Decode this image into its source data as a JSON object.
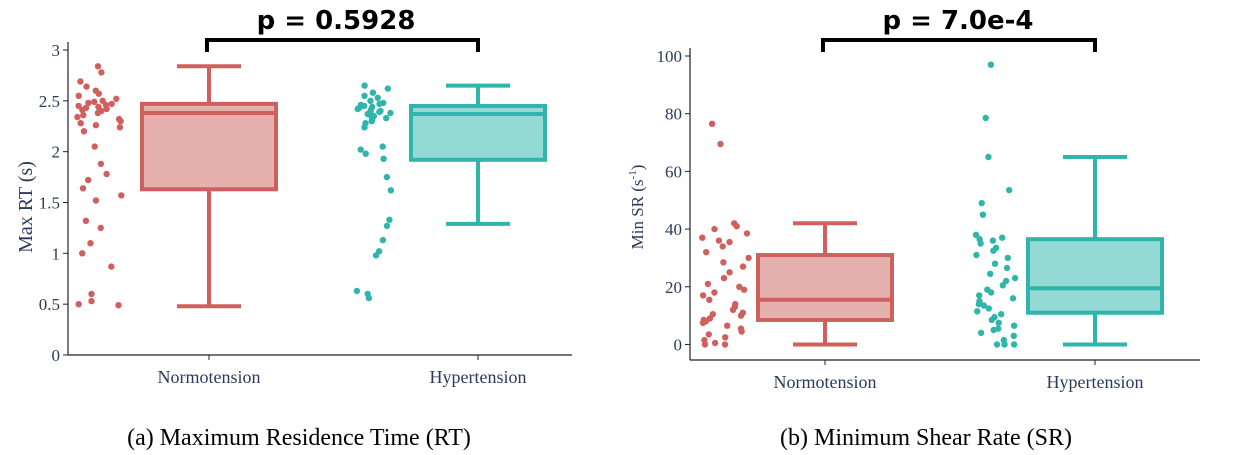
{
  "chart_data": [
    {
      "type": "box",
      "caption": "(a) Maximum Residence Time (RT)",
      "ylabel": "Max RT (s)",
      "ylim": [
        0,
        3
      ],
      "yticks": [
        0,
        0.5,
        1,
        1.5,
        2,
        2.5,
        3
      ],
      "yticklabels": [
        "0",
        "0.5",
        "1",
        "1.5",
        "2",
        "2.5",
        "3"
      ],
      "categories": [
        "Normotension",
        "Hypertension"
      ],
      "annotation": "p  = 0.5928",
      "boxes": [
        {
          "category": "Normotension",
          "min": 0.48,
          "q1": 1.63,
          "median": 2.38,
          "q3": 2.47,
          "max": 2.84,
          "color": "#d0605e",
          "fill": "#e6b0af"
        },
        {
          "category": "Hypertension",
          "min": 1.29,
          "q1": 1.92,
          "median": 2.37,
          "q3": 2.45,
          "max": 2.65,
          "color": "#2fb5ab",
          "fill": "#93dad4"
        }
      ],
      "points": [
        [
          2.84,
          2.78,
          2.69,
          2.64,
          2.6,
          2.57,
          2.55,
          2.52,
          2.5,
          2.49,
          2.48,
          2.47,
          2.46,
          2.45,
          2.44,
          2.43,
          2.42,
          2.41,
          2.4,
          2.38,
          2.36,
          2.34,
          2.32,
          2.3,
          2.28,
          2.26,
          2.24,
          2.2,
          2.05,
          1.88,
          1.78,
          1.72,
          1.64,
          1.57,
          1.52,
          1.32,
          1.25,
          1.1,
          1.0,
          0.87,
          0.6,
          0.53,
          0.5,
          0.49
        ],
        [
          2.65,
          2.62,
          2.58,
          2.55,
          2.53,
          2.5,
          2.48,
          2.47,
          2.46,
          2.45,
          2.44,
          2.43,
          2.42,
          2.41,
          2.4,
          2.39,
          2.38,
          2.37,
          2.36,
          2.35,
          2.34,
          2.33,
          2.32,
          2.3,
          2.28,
          2.24,
          2.05,
          2.02,
          1.98,
          1.93,
          1.75,
          1.62,
          1.33,
          1.27,
          1.13,
          1.02,
          0.98,
          0.63,
          0.6,
          0.56
        ]
      ]
    },
    {
      "type": "box",
      "caption": "(b) Minimum Shear Rate (SR)",
      "ylabel_main": "Min SR (s",
      "ylabel_sup": "-1",
      "ylabel_end": ")",
      "ylim": [
        -4,
        100
      ],
      "yticks": [
        0,
        20,
        40,
        60,
        80,
        100
      ],
      "yticklabels": [
        "0",
        "20",
        "40",
        "60",
        "80",
        "100"
      ],
      "categories": [
        "Normotension",
        "Hypertension"
      ],
      "annotation": "p  = 7.0e-4",
      "boxes": [
        {
          "category": "Normotension",
          "min": 0,
          "q1": 8.5,
          "median": 15.5,
          "q3": 31,
          "max": 42,
          "color": "#d0605e",
          "fill": "#e6b0af"
        },
        {
          "category": "Hypertension",
          "min": 0,
          "q1": 11,
          "median": 19.5,
          "q3": 36.5,
          "max": 65,
          "color": "#2fb5ab",
          "fill": "#93dad4"
        }
      ],
      "points": [
        [
          76.5,
          69.5,
          42,
          41,
          40,
          38.5,
          37,
          36,
          35.5,
          34,
          32,
          30,
          28.5,
          27,
          25,
          23,
          21,
          20,
          19,
          18,
          17,
          15.5,
          14,
          13,
          12,
          11,
          10.5,
          10,
          9,
          8.5,
          8,
          7.5,
          6.5,
          5.5,
          4.5,
          3.5,
          2.5,
          1.5,
          0.5,
          0,
          0
        ],
        [
          97,
          78.5,
          65,
          53.5,
          49,
          45,
          38,
          37,
          36.5,
          36,
          35,
          33.5,
          32.5,
          31,
          30,
          28,
          26.5,
          24.5,
          23,
          22,
          20.5,
          19,
          18,
          17,
          16,
          15,
          14,
          13.5,
          12.5,
          11.5,
          10.5,
          9.5,
          8.5,
          7.5,
          6.5,
          5.5,
          5,
          4,
          3,
          1.5,
          0,
          0,
          0
        ]
      ]
    }
  ]
}
